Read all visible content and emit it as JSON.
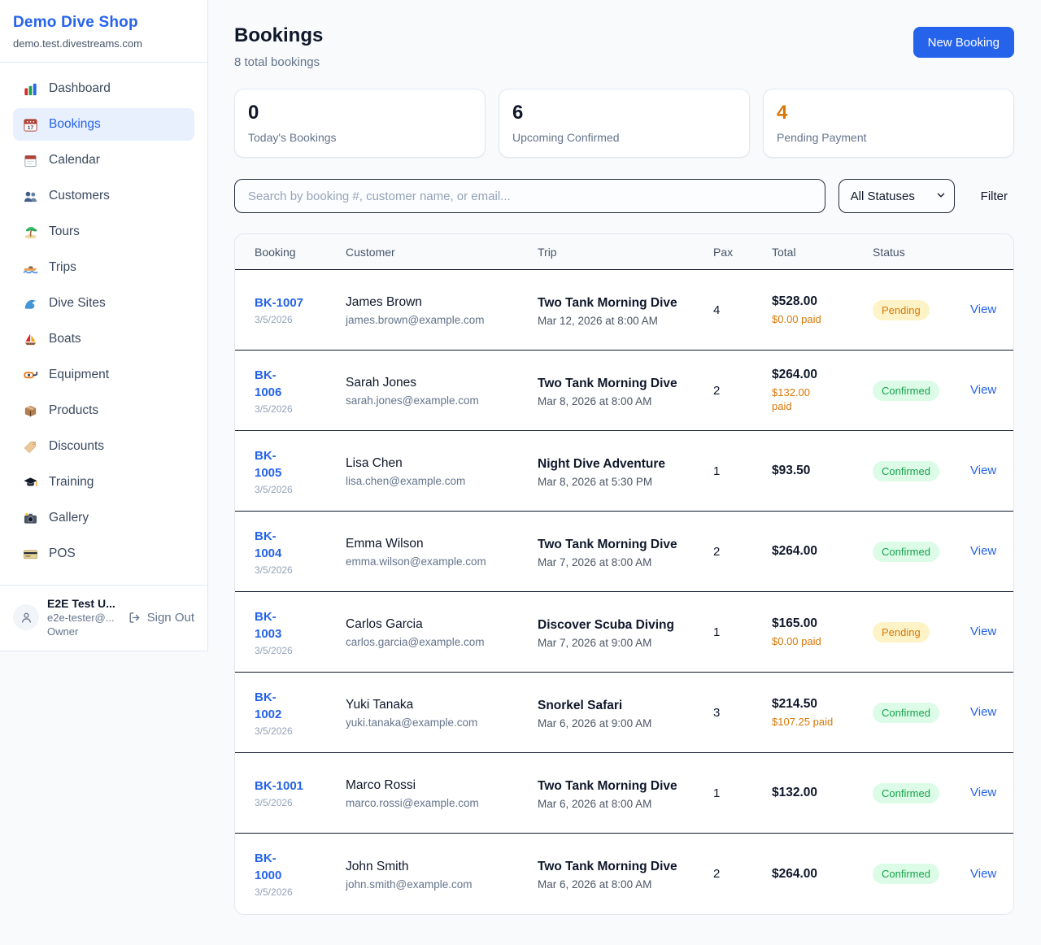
{
  "sidebar": {
    "brand": {
      "name": "Demo Dive Shop",
      "domain": "demo.test.divestreams.com"
    },
    "items": [
      {
        "label": "Dashboard",
        "icon": "bar-chart-icon",
        "active": false
      },
      {
        "label": "Bookings",
        "icon": "calendar-date-icon",
        "active": true
      },
      {
        "label": "Calendar",
        "icon": "calendar-icon",
        "active": false
      },
      {
        "label": "Customers",
        "icon": "people-icon",
        "active": false
      },
      {
        "label": "Tours",
        "icon": "island-icon",
        "active": false
      },
      {
        "label": "Trips",
        "icon": "speedboat-icon",
        "active": false
      },
      {
        "label": "Dive Sites",
        "icon": "wave-icon",
        "active": false
      },
      {
        "label": "Boats",
        "icon": "sailboat-icon",
        "active": false
      },
      {
        "label": "Equipment",
        "icon": "dive-mask-icon",
        "active": false
      },
      {
        "label": "Products",
        "icon": "package-icon",
        "active": false
      },
      {
        "label": "Discounts",
        "icon": "tag-icon",
        "active": false
      },
      {
        "label": "Training",
        "icon": "graduation-cap-icon",
        "active": false
      },
      {
        "label": "Gallery",
        "icon": "camera-icon",
        "active": false
      },
      {
        "label": "POS",
        "icon": "credit-card-icon",
        "active": false
      }
    ],
    "user": {
      "name": "E2E Test U...",
      "email": "e2e-tester@...",
      "role": "Owner",
      "signout_label": "Sign Out"
    }
  },
  "header": {
    "title": "Bookings",
    "subtitle": "8 total bookings",
    "new_booking_label": "New Booking"
  },
  "stats": [
    {
      "value": "0",
      "label": "Today's Bookings",
      "highlight": false
    },
    {
      "value": "6",
      "label": "Upcoming Confirmed",
      "highlight": false
    },
    {
      "value": "4",
      "label": "Pending Payment",
      "highlight": true
    }
  ],
  "controls": {
    "search_placeholder": "Search by booking #, customer name, or email...",
    "status_filter_value": "All Statuses",
    "filter_label": "Filter"
  },
  "table": {
    "columns": [
      "Booking",
      "Customer",
      "Trip",
      "Pax",
      "Total",
      "Status"
    ],
    "view_label": "View",
    "rows": [
      {
        "id": "BK-1007",
        "id_two_lines": false,
        "date": "3/5/2026",
        "customer": "James Brown",
        "email": "james.brown@example.com",
        "trip": "Two Tank Morning Dive",
        "trip_datetime": "Mar 12, 2026 at 8:00 AM",
        "pax": "4",
        "total": "$528.00",
        "paid": "$0.00 paid",
        "paid_two_lines": false,
        "status": "Pending"
      },
      {
        "id": "BK-1006",
        "id_two_lines": true,
        "date": "3/5/2026",
        "customer": "Sarah Jones",
        "email": "sarah.jones@example.com",
        "trip": "Two Tank Morning Dive",
        "trip_datetime": "Mar 8, 2026 at 8:00 AM",
        "pax": "2",
        "total": "$264.00",
        "paid": "$132.00 paid",
        "paid_two_lines": true,
        "status": "Confirmed"
      },
      {
        "id": "BK-1005",
        "id_two_lines": true,
        "date": "3/5/2026",
        "customer": "Lisa Chen",
        "email": "lisa.chen@example.com",
        "trip": "Night Dive Adventure",
        "trip_datetime": "Mar 8, 2026 at 5:30 PM",
        "pax": "1",
        "total": "$93.50",
        "paid": null,
        "paid_two_lines": false,
        "status": "Confirmed"
      },
      {
        "id": "BK-1004",
        "id_two_lines": true,
        "date": "3/5/2026",
        "customer": "Emma Wilson",
        "email": "emma.wilson@example.com",
        "trip": "Two Tank Morning Dive",
        "trip_datetime": "Mar 7, 2026 at 8:00 AM",
        "pax": "2",
        "total": "$264.00",
        "paid": null,
        "paid_two_lines": false,
        "status": "Confirmed"
      },
      {
        "id": "BK-1003",
        "id_two_lines": true,
        "date": "3/5/2026",
        "customer": "Carlos Garcia",
        "email": "carlos.garcia@example.com",
        "trip": "Discover Scuba Diving",
        "trip_datetime": "Mar 7, 2026 at 9:00 AM",
        "pax": "1",
        "total": "$165.00",
        "paid": "$0.00 paid",
        "paid_two_lines": false,
        "status": "Pending"
      },
      {
        "id": "BK-1002",
        "id_two_lines": true,
        "date": "3/5/2026",
        "customer": "Yuki Tanaka",
        "email": "yuki.tanaka@example.com",
        "trip": "Snorkel Safari",
        "trip_datetime": "Mar 6, 2026 at 9:00 AM",
        "pax": "3",
        "total": "$214.50",
        "paid": "$107.25 paid",
        "paid_two_lines": false,
        "status": "Confirmed"
      },
      {
        "id": "BK-1001",
        "id_two_lines": false,
        "date": "3/5/2026",
        "customer": "Marco Rossi",
        "email": "marco.rossi@example.com",
        "trip": "Two Tank Morning Dive",
        "trip_datetime": "Mar 6, 2026 at 8:00 AM",
        "pax": "1",
        "total": "$132.00",
        "paid": null,
        "paid_two_lines": false,
        "status": "Confirmed"
      },
      {
        "id": "BK-1000",
        "id_two_lines": true,
        "date": "3/5/2026",
        "customer": "John Smith",
        "email": "john.smith@example.com",
        "trip": "Two Tank Morning Dive",
        "trip_datetime": "Mar 6, 2026 at 8:00 AM",
        "pax": "2",
        "total": "$264.00",
        "paid": null,
        "paid_two_lines": false,
        "status": "Confirmed"
      }
    ]
  },
  "colors": {
    "accent_blue": "#2563eb",
    "active_nav_bg": "#e8f0fe",
    "pending_text": "#d97706",
    "pending_bg": "#fef3c7",
    "confirmed_text": "#16a34a",
    "confirmed_bg": "#dcfce7",
    "orange_stat": "#d97706",
    "row_divider": "#0f172a"
  }
}
